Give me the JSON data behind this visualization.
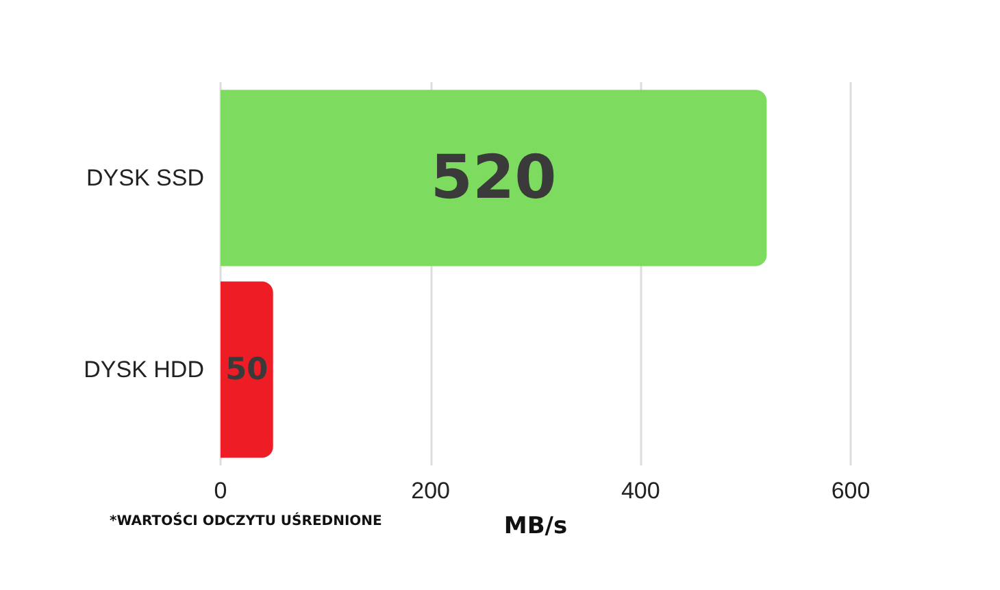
{
  "chart_data": {
    "type": "bar",
    "orientation": "horizontal",
    "categories": [
      "DYSK SSD",
      "DYSK HDD"
    ],
    "values": [
      520,
      50
    ],
    "colors": [
      "#7ddc5f",
      "#ee1c25"
    ],
    "xlim": [
      0,
      600
    ],
    "xticks": [
      0,
      200,
      400,
      600
    ],
    "xlabel": "MB/s",
    "grid": "x",
    "data_labels": true,
    "annotations": [
      "*WARTOŚCI ODCZYTU UŚREDNIONE"
    ]
  }
}
